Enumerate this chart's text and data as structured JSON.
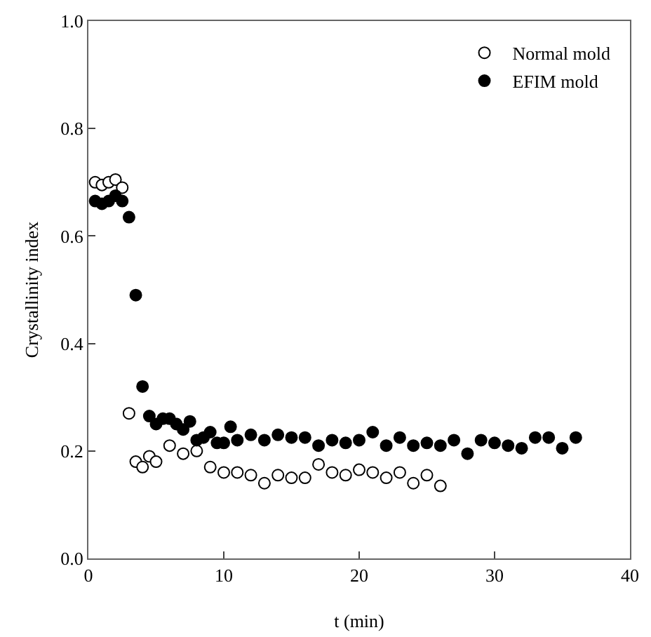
{
  "chart_data": {
    "type": "scatter",
    "xlabel": "t (min)",
    "ylabel": "Crystallinity index",
    "xlim": [
      0,
      40
    ],
    "xticks": [
      0,
      10,
      20,
      30,
      40
    ],
    "ylim": [
      0,
      1
    ],
    "yticks": [
      {
        "value": 0,
        "label": "0.0"
      },
      {
        "value": 0.2,
        "label": "0.2"
      },
      {
        "value": 0.4,
        "label": "0.4"
      },
      {
        "value": 0.6,
        "label": "0.6"
      },
      {
        "value": 0.8,
        "label": "0.8"
      },
      {
        "value": 1,
        "label": "1.0"
      }
    ],
    "grid": false,
    "legend": "top right",
    "marker": "circle",
    "series": [
      {
        "name": "Normal mold",
        "color": "#ffffff",
        "x": [
          0.5,
          1,
          1.5,
          2,
          2.5,
          3,
          3.5,
          4,
          4.5,
          5,
          6,
          7,
          8,
          9,
          10,
          11,
          12,
          13,
          14,
          15,
          16,
          17,
          18,
          19,
          20,
          21,
          22,
          23,
          24,
          25,
          26
        ],
        "values": [
          0.7,
          0.695,
          0.7,
          0.705,
          0.69,
          0.27,
          0.18,
          0.17,
          0.19,
          0.18,
          0.21,
          0.195,
          0.2,
          0.17,
          0.16,
          0.16,
          0.155,
          0.14,
          0.155,
          0.15,
          0.15,
          0.175,
          0.16,
          0.155,
          0.165,
          0.16,
          0.15,
          0.16,
          0.14,
          0.155,
          0.135
        ]
      },
      {
        "name": "EFIM mold",
        "color": "#000000",
        "x": [
          0.5,
          1,
          1.5,
          2,
          2.5,
          3,
          3.5,
          4,
          4.5,
          5,
          5.5,
          6,
          6.5,
          7,
          7.5,
          8,
          8.5,
          9,
          9.5,
          10,
          10.5,
          11,
          12,
          13,
          14,
          15,
          16,
          17,
          18,
          19,
          20,
          21,
          22,
          23,
          24,
          25,
          26,
          27,
          28,
          29,
          30,
          31,
          32,
          33,
          34,
          35,
          36
        ],
        "values": [
          0.665,
          0.66,
          0.665,
          0.675,
          0.665,
          0.635,
          0.49,
          0.32,
          0.265,
          0.25,
          0.26,
          0.26,
          0.25,
          0.24,
          0.255,
          0.22,
          0.225,
          0.235,
          0.215,
          0.215,
          0.245,
          0.22,
          0.23,
          0.22,
          0.23,
          0.225,
          0.225,
          0.21,
          0.22,
          0.215,
          0.22,
          0.235,
          0.21,
          0.225,
          0.21,
          0.215,
          0.21,
          0.22,
          0.195,
          0.22,
          0.215,
          0.21,
          0.205,
          0.225,
          0.225,
          0.205,
          0.225
        ]
      }
    ]
  }
}
